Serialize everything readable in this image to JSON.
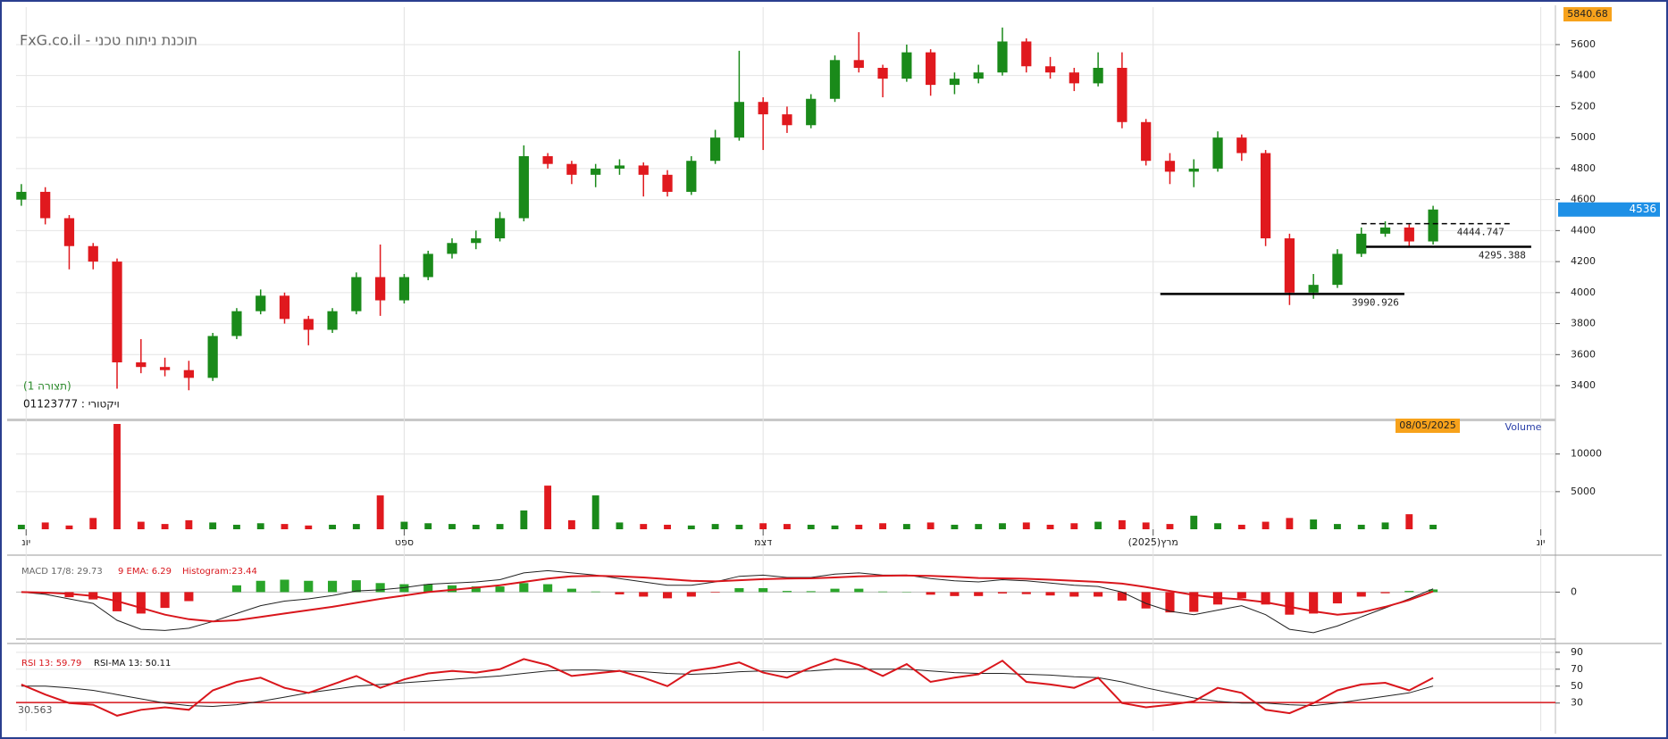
{
  "chart_data": [
    {
      "type": "candlestick",
      "title": "FxG.co.il - תוכנת ניתוח טכני",
      "annotations": [
        "(תצורה 1)",
        "01123777 : ויקטורי"
      ],
      "axis_max": 5840.68,
      "xlim": [
        -0.22,
        64
      ],
      "ylim": [
        3193,
        5830
      ],
      "yticks": [
        3400,
        3600,
        3800,
        4000,
        4200,
        4400,
        4600,
        4800,
        5000,
        5200,
        5400,
        5600
      ],
      "grid": true,
      "up_color": "#1a8a1a",
      "down_color": "#e0191e",
      "open": [
        4600,
        4650,
        4480,
        4300,
        4200,
        3550,
        3520,
        3500,
        3450,
        3720,
        3880,
        3980,
        3830,
        3760,
        3880,
        4100,
        3950,
        4100,
        4250,
        4320,
        4350,
        4480,
        4880,
        4830,
        4760,
        4800,
        4820,
        4760,
        4650,
        4850,
        5000,
        5230,
        5150,
        5080,
        5250,
        5500,
        5450,
        5380,
        5550,
        5340,
        5380,
        5420,
        5620,
        5460,
        5420,
        5350,
        5450,
        5100,
        4850,
        4780,
        4800,
        5000,
        4900,
        4350,
        4000,
        4050,
        4250,
        4380,
        4420,
        4330
      ],
      "high": [
        4700,
        4680,
        4500,
        4320,
        4220,
        3700,
        3580,
        3560,
        3740,
        3900,
        4020,
        4000,
        3850,
        3900,
        4130,
        4310,
        4120,
        4270,
        4350,
        4400,
        4520,
        4950,
        4900,
        4850,
        4830,
        4860,
        4840,
        4790,
        4880,
        5050,
        5560,
        5260,
        5200,
        5280,
        5530,
        5680,
        5470,
        5600,
        5570,
        5420,
        5470,
        5710,
        5640,
        5520,
        5450,
        5550,
        5550,
        5120,
        4900,
        4860,
        5040,
        5020,
        4920,
        4380,
        4120,
        4280,
        4420,
        4460,
        4440,
        4560
      ],
      "low": [
        4560,
        4440,
        4150,
        4150,
        3380,
        3480,
        3460,
        3370,
        3430,
        3700,
        3860,
        3800,
        3660,
        3740,
        3860,
        3850,
        3930,
        4080,
        4220,
        4280,
        4330,
        4460,
        4800,
        4700,
        4680,
        4760,
        4620,
        4620,
        4630,
        4830,
        4980,
        4920,
        5030,
        5060,
        5230,
        5420,
        5260,
        5360,
        5270,
        5280,
        5350,
        5400,
        5420,
        5380,
        5300,
        5330,
        5060,
        4820,
        4700,
        4680,
        4780,
        4850,
        4300,
        3920,
        3960,
        4030,
        4230,
        4360,
        4300,
        4310
      ],
      "close": [
        4650,
        4480,
        4300,
        4200,
        3550,
        3520,
        3500,
        3450,
        3720,
        3880,
        3980,
        3830,
        3760,
        3880,
        4100,
        3950,
        4100,
        4250,
        4320,
        4350,
        4480,
        4880,
        4830,
        4760,
        4800,
        4820,
        4760,
        4650,
        4850,
        5000,
        5230,
        5150,
        5080,
        5250,
        5500,
        5450,
        5380,
        5550,
        5340,
        5380,
        5420,
        5620,
        5460,
        5420,
        5350,
        5450,
        5100,
        4850,
        4780,
        4800,
        5000,
        4900,
        4350,
        4000,
        4050,
        4250,
        4380,
        4420,
        4330,
        4536
      ],
      "lines": [
        {
          "value": 4444.747,
          "x": [
            56,
            62.2
          ],
          "style": "dashed"
        },
        {
          "value": 4295.388,
          "x": [
            56.2,
            63.1
          ],
          "style": "solid"
        },
        {
          "value": 3990.926,
          "x": [
            47.6,
            57.8
          ],
          "style": "solid"
        }
      ]
    },
    {
      "type": "bar",
      "title": "Volume",
      "cursor_date": "08/05/2025",
      "ylim": [
        0,
        14000
      ],
      "yticks": [
        5000,
        10000
      ],
      "grid": true,
      "xticks": [
        {
          "value": 0.2,
          "label": "יונ"
        },
        {
          "value": 16,
          "label": "ספט"
        },
        {
          "value": 31,
          "label": "דצמ"
        },
        {
          "value": 47.3,
          "label": "מרץ(2025)"
        },
        {
          "value": 63.5,
          "label": "יונ"
        }
      ],
      "values": [
        600,
        900,
        500,
        1500,
        14000,
        1000,
        700,
        1200,
        900,
        600,
        800,
        700,
        500,
        600,
        700,
        4500,
        1000,
        800,
        700,
        600,
        700,
        2500,
        5800,
        1200,
        4500,
        900,
        700,
        600,
        500,
        700,
        600,
        800,
        700,
        600,
        500,
        600,
        800,
        700,
        900,
        600,
        700,
        800,
        900,
        600,
        800,
        1000,
        1200,
        900,
        700,
        1800,
        800,
        600,
        1000,
        1500,
        1300,
        700,
        600,
        900,
        2000,
        600
      ]
    },
    {
      "type": "macd",
      "macd_label": "MACD 17/8: 29.73",
      "signal_label": "9 EMA: 6.29",
      "histogram_label": "Histogram:23.44",
      "ylim": [
        -400,
        280
      ],
      "yticks": [
        0
      ],
      "macd": [
        0,
        -20,
        -60,
        -100,
        -250,
        -330,
        -340,
        -320,
        -260,
        -190,
        -120,
        -80,
        -60,
        -30,
        10,
        20,
        40,
        70,
        80,
        90,
        110,
        170,
        190,
        170,
        150,
        120,
        90,
        60,
        60,
        90,
        140,
        150,
        130,
        130,
        160,
        170,
        150,
        150,
        120,
        100,
        90,
        110,
        100,
        80,
        60,
        50,
        0,
        -100,
        -170,
        -200,
        -160,
        -120,
        -200,
        -330,
        -360,
        -300,
        -220,
        -140,
        -60,
        29.73
      ],
      "signal": [
        0,
        -5,
        -15,
        -35,
        -80,
        -140,
        -200,
        -240,
        -260,
        -250,
        -220,
        -190,
        -160,
        -130,
        -95,
        -60,
        -30,
        0,
        20,
        40,
        60,
        90,
        120,
        140,
        145,
        140,
        130,
        115,
        100,
        95,
        105,
        115,
        120,
        122,
        130,
        140,
        145,
        147,
        143,
        135,
        125,
        122,
        118,
        110,
        100,
        90,
        75,
        45,
        10,
        -25,
        -50,
        -65,
        -90,
        -130,
        -170,
        -200,
        -180,
        -130,
        -70,
        6.29
      ],
      "histogram": [
        0,
        -15,
        -45,
        -65,
        -170,
        -190,
        -140,
        -80,
        0,
        60,
        100,
        110,
        100,
        100,
        105,
        80,
        70,
        70,
        60,
        50,
        50,
        80,
        70,
        30,
        5,
        -20,
        -40,
        -55,
        -40,
        -5,
        35,
        35,
        10,
        8,
        30,
        30,
        5,
        3,
        -23,
        -35,
        -35,
        -12,
        -18,
        -30,
        -40,
        -40,
        -75,
        -145,
        -180,
        -175,
        -110,
        -55,
        -110,
        -200,
        -190,
        -100,
        -40,
        -10,
        10,
        23.44
      ],
      "macd_color": "#222222",
      "signal_color": "#d9161c",
      "up_color": "#2aa52a",
      "down_color": "#e0191e"
    },
    {
      "type": "line",
      "rsi_label": "RSI 13: 59.79",
      "ma_label": "RSI-MA 13: 50.11",
      "level": 30.563,
      "ylim": [
        -3,
        93
      ],
      "yticks": [
        30,
        50,
        70,
        90
      ],
      "grid": true,
      "rsi": [
        52,
        40,
        30,
        28,
        15,
        22,
        25,
        22,
        45,
        55,
        60,
        48,
        42,
        52,
        62,
        48,
        58,
        65,
        68,
        66,
        70,
        82,
        75,
        62,
        65,
        68,
        60,
        50,
        68,
        72,
        78,
        66,
        60,
        72,
        82,
        75,
        62,
        76,
        55,
        60,
        64,
        80,
        55,
        52,
        48,
        60,
        30,
        25,
        28,
        32,
        48,
        42,
        22,
        18,
        30,
        45,
        52,
        54,
        45,
        59.79
      ],
      "rsi_ma": [
        50,
        50,
        48,
        45,
        40,
        35,
        30,
        27,
        26,
        28,
        32,
        37,
        42,
        46,
        50,
        52,
        54,
        56,
        58,
        60,
        62,
        65,
        68,
        69,
        69,
        68,
        67,
        65,
        64,
        65,
        67,
        68,
        67,
        68,
        70,
        70,
        70,
        70,
        68,
        66,
        65,
        65,
        64,
        63,
        61,
        60,
        55,
        48,
        42,
        36,
        32,
        30,
        30,
        28,
        27,
        30,
        34,
        38,
        42,
        50.11
      ],
      "rsi_color": "#d9161c",
      "ma_color": "#222222"
    }
  ]
}
